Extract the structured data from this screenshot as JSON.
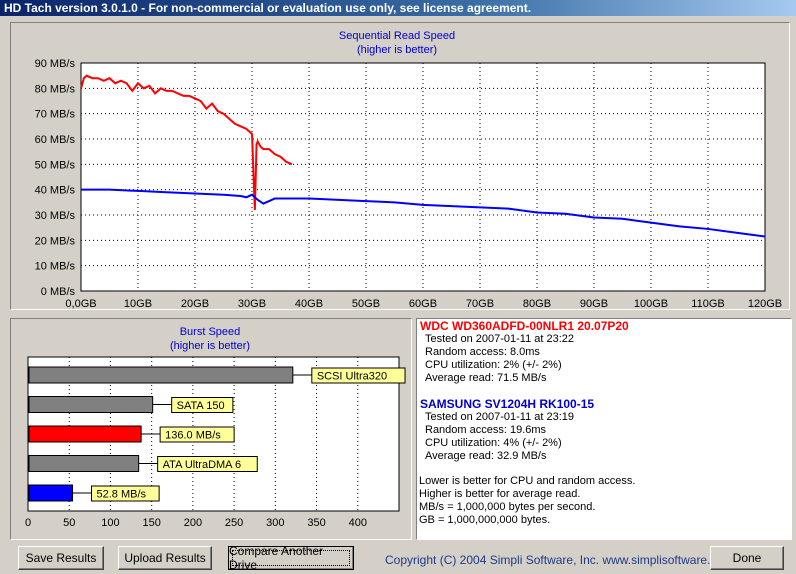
{
  "window": {
    "title": "HD Tach version 3.0.1.0  - For non-commercial or evaluation use only, see license agreement."
  },
  "seq_chart": {
    "title_line1": "Sequential Read Speed",
    "title_line2": "(higher is better)"
  },
  "burst_chart": {
    "title_line1": "Burst Speed",
    "title_line2": "(higher is better)"
  },
  "chart_data": [
    {
      "type": "line",
      "title": "Sequential Read Speed (higher is better)",
      "xlabel": "",
      "ylabel": "",
      "xlim": [
        0,
        120
      ],
      "ylim": [
        0,
        90
      ],
      "x_ticks": [
        "0,0GB",
        "10GB",
        "20GB",
        "30GB",
        "40GB",
        "50GB",
        "60GB",
        "70GB",
        "80GB",
        "90GB",
        "100GB",
        "110GB",
        "120GB"
      ],
      "y_ticks": [
        "0 MB/s",
        "10 MB/s",
        "20 MB/s",
        "30 MB/s",
        "40 MB/s",
        "50 MB/s",
        "60 MB/s",
        "70 MB/s",
        "80 MB/s",
        "90 MB/s"
      ],
      "grid": true,
      "series": [
        {
          "color": "#ff0000",
          "x": [
            0,
            0.5,
            1,
            2,
            3,
            4,
            5,
            6,
            7,
            8,
            9,
            10,
            11,
            12,
            13,
            14,
            15,
            16,
            17,
            18,
            19,
            20,
            21,
            22,
            23,
            24,
            25,
            26,
            27,
            28,
            29,
            30,
            30.5,
            30.8,
            31,
            31.5,
            32,
            33,
            34,
            35,
            36,
            37
          ],
          "y": [
            80,
            84,
            85,
            84,
            84,
            83,
            84,
            82,
            83,
            82,
            79,
            82,
            80,
            81,
            78,
            80,
            79,
            79,
            78,
            77,
            77,
            76,
            75,
            72,
            74,
            71,
            70,
            68,
            66,
            65,
            64,
            62,
            32,
            58,
            59,
            57,
            56,
            56,
            54,
            53,
            51,
            50
          ]
        },
        {
          "color": "#0000ff",
          "x": [
            0,
            5,
            10,
            15,
            20,
            25,
            28,
            29,
            30,
            30.5,
            31,
            32,
            34,
            40,
            50,
            55,
            60,
            65,
            70,
            75,
            80,
            85,
            90,
            95,
            100,
            105,
            110,
            115,
            120
          ],
          "y": [
            40,
            40,
            39.5,
            39,
            38.5,
            38,
            37.5,
            37,
            38,
            37,
            36,
            34.5,
            36.5,
            36.5,
            35.5,
            35,
            34,
            33.5,
            33,
            32.5,
            31,
            30.5,
            29,
            28.5,
            27,
            25.5,
            24.5,
            23,
            21.5
          ]
        }
      ]
    },
    {
      "type": "bar",
      "title": "Burst Speed (higher is better)",
      "orientation": "horizontal",
      "xlim": [
        0,
        450
      ],
      "x_ticks": [
        "0",
        "50",
        "100",
        "150",
        "200",
        "250",
        "300",
        "350",
        "400"
      ],
      "grid": true,
      "bars": [
        {
          "label": "SCSI Ultra320",
          "value": 320,
          "color": "#808080"
        },
        {
          "label": "SATA 150",
          "value": 150,
          "color": "#808080"
        },
        {
          "label": "136.0 MB/s",
          "value": 136,
          "color": "#ff0000"
        },
        {
          "label": "ATA UltraDMA 6",
          "value": 133,
          "color": "#808080"
        },
        {
          "label": "52.8 MB/s",
          "value": 52.8,
          "color": "#0000ff"
        }
      ]
    }
  ],
  "info": {
    "drive1": {
      "name": "WDC WD360ADFD-00NLR1 20.07P20",
      "color": "#ff0000",
      "tested": "Tested on 2007-01-11 at 23:22",
      "random": "Random access: 8.0ms",
      "cpu": "CPU utilization: 2% (+/- 2%)",
      "avg": "Average read: 71.5 MB/s"
    },
    "drive2": {
      "name": "SAMSUNG SV1204H RK100-15",
      "color": "#0000ff",
      "tested": "Tested on 2007-01-11 at 23:19",
      "random": "Random access: 19.6ms",
      "cpu": "CPU utilization: 4% (+/- 2%)",
      "avg": "Average read: 32.9 MB/s"
    },
    "notes": [
      "Lower is better for CPU and random access.",
      "Higher is better for average read.",
      "MB/s = 1,000,000 bytes per second.",
      "GB = 1,000,000,000 bytes."
    ]
  },
  "buttons": {
    "save": "Save Results",
    "upload": "Upload Results",
    "compare": "Compare Another Drive",
    "done": "Done"
  },
  "copyright": "Copyright (C) 2004 Simpli Software, Inc. www.simplisoftware.com"
}
